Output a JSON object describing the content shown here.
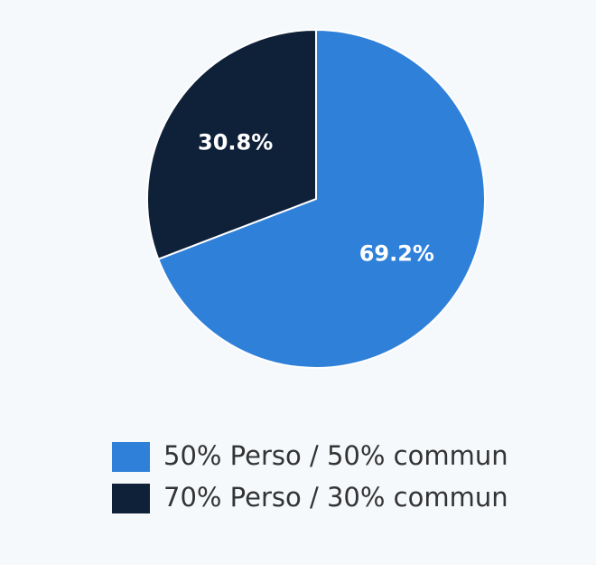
{
  "chart_data": {
    "type": "pie",
    "categories": [
      "50% Perso / 50% commun",
      "70% Perso / 30% commun"
    ],
    "values": [
      69.2,
      30.8
    ],
    "value_labels": [
      "69.2%",
      "30.8%"
    ],
    "colors": [
      "#2f80d9",
      "#0f2139"
    ]
  }
}
